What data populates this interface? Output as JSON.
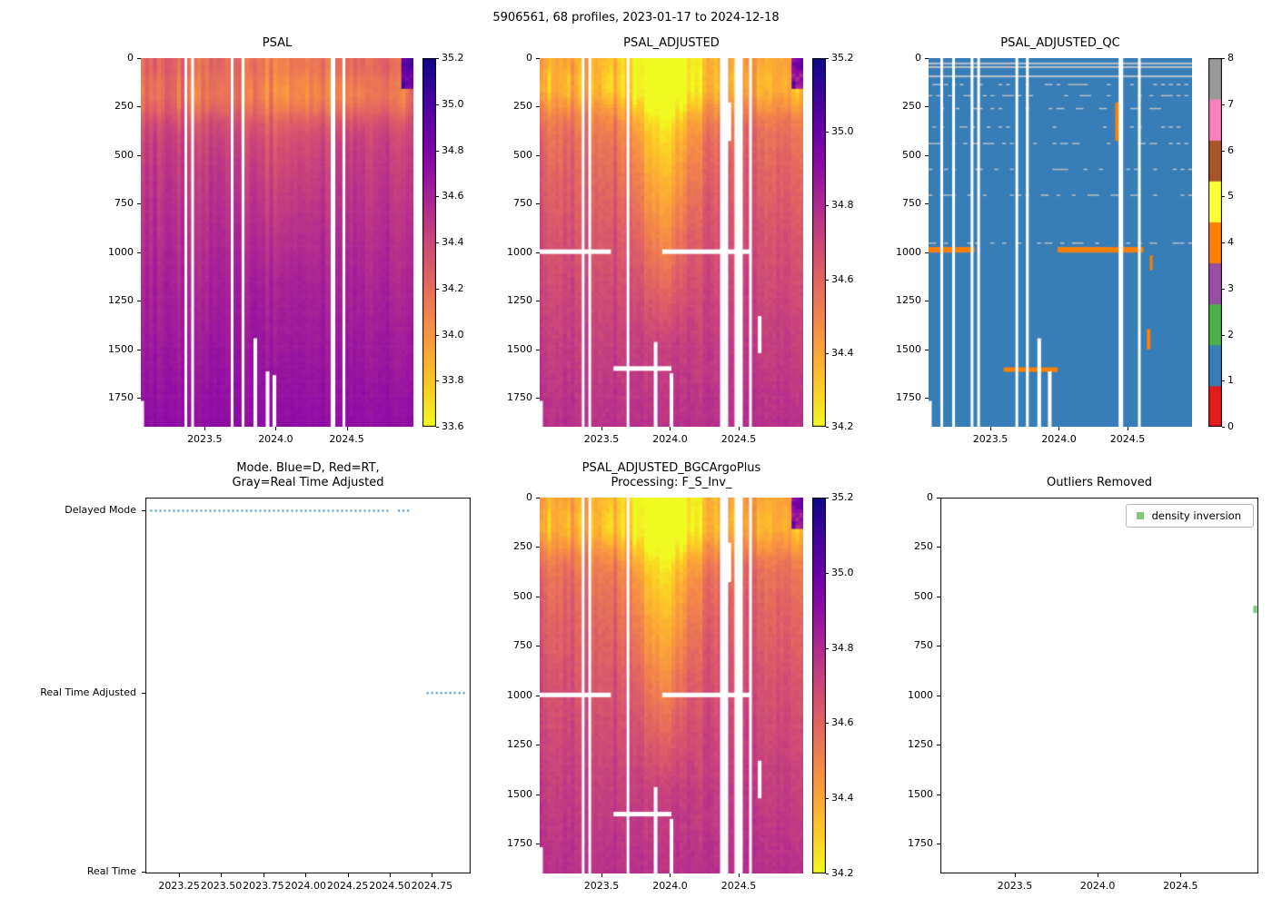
{
  "figure": {
    "suptitle": "5906561, 68 profiles, 2023-01-17 to 2024-12-18",
    "float_id": "5906561",
    "n_profiles": 68,
    "date_start": "2023-01-17",
    "date_end": "2024-12-18"
  },
  "chart_data": [
    {
      "id": "psal",
      "type": "heatmap",
      "title": "PSAL",
      "x_range": [
        2023.05,
        2024.97
      ],
      "y_range": [
        0,
        1900
      ],
      "x_tick_values": [
        2023.5,
        2024.0,
        2024.5
      ],
      "x_tick_labels": [
        "2023.5",
        "2024.0",
        "2024.5"
      ],
      "y_tick_values": [
        0,
        250,
        500,
        750,
        1000,
        1250,
        1500,
        1750
      ],
      "y_tick_labels": [
        "0",
        "250",
        "500",
        "750",
        "1000",
        "1250",
        "1500",
        "1750"
      ],
      "colorbar": {
        "type": "continuous",
        "colormap": "plasma_reversed",
        "vmin": 33.6,
        "vmax": 35.2,
        "tick_values": [
          33.6,
          33.8,
          34.0,
          34.2,
          34.4,
          34.6,
          34.8,
          35.0,
          35.2
        ],
        "tick_labels": [
          "33.6",
          "33.8",
          "34.0",
          "34.2",
          "34.4",
          "34.6",
          "34.8",
          "35.0",
          "35.2"
        ]
      },
      "field": {
        "surface": 34.25,
        "deep": 34.72,
        "curve": 0.6,
        "noise": 0.09,
        "band_strength": 0.28,
        "band_depth": 0.1,
        "plume": {
          "x": 0.5,
          "width": 0.22,
          "max_depth": 0.6,
          "strength": 0.13
        },
        "corner_blob": {
          "x_from": 0.955,
          "depth_to": 0.085,
          "value": 35.05
        },
        "seed": 1
      },
      "missing_columns": [
        {
          "x": 0.165,
          "w": 3
        },
        {
          "x": 0.19,
          "w": 3
        },
        {
          "x": 0.335,
          "w": 3
        },
        {
          "x": 0.375,
          "w": 3
        },
        {
          "x": 0.705,
          "w": 5
        },
        {
          "x": 0.745,
          "w": 3
        }
      ],
      "partial_columns": [
        {
          "x": 0.005,
          "from": 0.93
        },
        {
          "x": 0.42,
          "from": 0.76
        },
        {
          "x": 0.465,
          "from": 0.85
        },
        {
          "x": 0.49,
          "from": 0.86
        }
      ]
    },
    {
      "id": "psal_adjusted",
      "type": "heatmap",
      "title": "PSAL_ADJUSTED",
      "x_range": [
        2023.05,
        2024.97
      ],
      "y_range": [
        0,
        1900
      ],
      "x_tick_values": [
        2023.5,
        2024.0,
        2024.5
      ],
      "x_tick_labels": [
        "2023.5",
        "2024.0",
        "2024.5"
      ],
      "y_tick_values": [
        0,
        250,
        500,
        750,
        1000,
        1250,
        1500,
        1750
      ],
      "y_tick_labels": [
        "0",
        "250",
        "500",
        "750",
        "1000",
        "1250",
        "1500",
        "1750"
      ],
      "colorbar": {
        "type": "continuous",
        "colormap": "plasma_reversed",
        "vmin": 34.2,
        "vmax": 35.2,
        "tick_values": [
          34.2,
          34.4,
          34.6,
          34.8,
          35.0,
          35.2
        ],
        "tick_labels": [
          "34.2",
          "34.4",
          "34.6",
          "34.8",
          "35.0",
          "35.2"
        ]
      },
      "field": {
        "surface": 34.42,
        "deep": 34.78,
        "curve": 0.55,
        "noise": 0.07,
        "band_strength": 0.2,
        "band_depth": 0.08,
        "plume": {
          "x": 0.47,
          "width": 0.13,
          "max_depth": 0.78,
          "strength": 0.32
        },
        "corner_blob": {
          "x_from": 0.955,
          "depth_to": 0.085,
          "value": 35.05
        },
        "seed": 2
      },
      "missing_columns": [
        {
          "x": 0.165,
          "w": 3
        },
        {
          "x": 0.19,
          "w": 3
        },
        {
          "x": 0.335,
          "w": 3
        },
        {
          "x": 0.7,
          "w": 9
        },
        {
          "x": 0.755,
          "w": 9
        },
        {
          "x": 0.8,
          "w": 3
        }
      ],
      "white_rows": [
        {
          "y": 0.525,
          "x0": 0.0,
          "x1": 0.27,
          "h": 5
        },
        {
          "y": 0.525,
          "x0": 0.465,
          "x1": 0.8,
          "h": 5
        },
        {
          "y": 0.842,
          "x0": 0.28,
          "x1": 0.5,
          "h": 5
        }
      ],
      "partial_columns": [
        {
          "x": 0.44,
          "from": 0.77
        },
        {
          "x": 0.5,
          "from": 0.855
        },
        {
          "x": 0.72,
          "from": 0.12,
          "to": 0.225
        },
        {
          "x": 0.835,
          "from": 0.7,
          "to": 0.8
        },
        {
          "x": 0.005,
          "from": 0.93
        }
      ]
    },
    {
      "id": "psal_adjusted_qc",
      "type": "heatmap",
      "title": "PSAL_ADJUSTED_QC",
      "x_range": [
        2023.05,
        2024.97
      ],
      "y_range": [
        0,
        1900
      ],
      "x_tick_values": [
        2023.5,
        2024.0,
        2024.5
      ],
      "x_tick_labels": [
        "2023.5",
        "2024.0",
        "2024.5"
      ],
      "y_tick_values": [
        0,
        250,
        500,
        750,
        1000,
        1250,
        1500,
        1750
      ],
      "y_tick_labels": [
        "0",
        "250",
        "500",
        "750",
        "1000",
        "1250",
        "1500",
        "1750"
      ],
      "colorbar": {
        "type": "discrete",
        "tick_values": [
          0,
          1,
          2,
          3,
          4,
          5,
          6,
          7,
          8
        ],
        "tick_labels": [
          "0",
          "1",
          "2",
          "3",
          "4",
          "5",
          "6",
          "7",
          "8"
        ],
        "colors": [
          "#e41a1c",
          "#377eb8",
          "#4daf4a",
          "#984ea3",
          "#ff7f00",
          "#ffff33",
          "#a65628",
          "#f781bf",
          "#999999"
        ]
      },
      "background_flag": 1,
      "orange_marks": [
        {
          "kind": "row",
          "y": 0.52,
          "x0": 0.0,
          "x1": 0.175,
          "h": 6
        },
        {
          "kind": "row",
          "y": 0.52,
          "x0": 0.49,
          "x1": 0.815,
          "h": 6
        },
        {
          "kind": "row",
          "y": 0.845,
          "x0": 0.285,
          "x1": 0.49,
          "h": 5
        },
        {
          "kind": "col",
          "x": 0.715,
          "y0": 0.12,
          "y1": 0.225,
          "w": 4
        },
        {
          "kind": "col",
          "x": 0.835,
          "y0": 0.735,
          "y1": 0.79,
          "w": 4
        },
        {
          "kind": "col",
          "x": 0.845,
          "y0": 0.535,
          "y1": 0.575,
          "w": 3
        }
      ],
      "gray_rows": [
        {
          "y": 0.012,
          "x0": 0.0,
          "x1": 1.0
        },
        {
          "y": 0.022,
          "x0": 0.0,
          "x1": 1.0
        },
        {
          "y": 0.047,
          "x0": 0.0,
          "x1": 1.0
        }
      ],
      "gray_dash_rows": [
        0.07,
        0.1,
        0.135,
        0.185,
        0.23,
        0.3,
        0.37,
        0.5
      ],
      "missing_columns": [
        {
          "x": 0.05,
          "w": 3
        },
        {
          "x": 0.095,
          "w": 3
        },
        {
          "x": 0.165,
          "w": 3
        },
        {
          "x": 0.19,
          "w": 3
        },
        {
          "x": 0.335,
          "w": 3
        },
        {
          "x": 0.375,
          "w": 3
        },
        {
          "x": 0.73,
          "w": 5
        },
        {
          "x": 0.8,
          "w": 3
        }
      ],
      "partial_columns": [
        {
          "x": 0.005,
          "from": 0.93
        },
        {
          "x": 0.42,
          "from": 0.76
        },
        {
          "x": 0.46,
          "from": 0.85
        }
      ]
    },
    {
      "id": "mode",
      "type": "categorical_line",
      "title": "Mode. Blue=D, Red=RT,\nGray=Real Time Adjusted",
      "x_range": [
        2023.05,
        2024.98
      ],
      "x_tick_values": [
        2023.25,
        2023.5,
        2023.75,
        2024.0,
        2024.25,
        2024.5,
        2024.75
      ],
      "x_tick_labels": [
        "2023.25",
        "2023.50",
        "2023.75",
        "2024.00",
        "2024.25",
        "2024.50",
        "2024.75"
      ],
      "y_categories": [
        "Delayed Mode",
        "Real Time Adjusted",
        "Real Time"
      ],
      "line_color": "#1f77b4",
      "line_style": "dotted",
      "series": [
        {
          "name": "Delayed Mode",
          "category": "Delayed Mode",
          "segments": [
            [
              2023.08,
              2024.5
            ],
            [
              2024.55,
              2024.63
            ]
          ]
        },
        {
          "name": "Real Time Adjusted",
          "category": "Real Time Adjusted",
          "segments": [
            [
              2024.72,
              2024.96
            ]
          ]
        }
      ]
    },
    {
      "id": "psal_adjusted_bgcargoplus",
      "type": "heatmap",
      "title": "PSAL_ADJUSTED_BGCArgoPlus\nProcessing: F_S_Inv_",
      "x_range": [
        2023.05,
        2024.97
      ],
      "y_range": [
        0,
        1900
      ],
      "x_tick_values": [
        2023.5,
        2024.0,
        2024.5
      ],
      "x_tick_labels": [
        "2023.5",
        "2024.0",
        "2024.5"
      ],
      "y_tick_values": [
        0,
        250,
        500,
        750,
        1000,
        1250,
        1500,
        1750
      ],
      "y_tick_labels": [
        "0",
        "250",
        "500",
        "750",
        "1000",
        "1250",
        "1500",
        "1750"
      ],
      "colorbar": {
        "type": "continuous",
        "colormap": "plasma_reversed",
        "vmin": 34.2,
        "vmax": 35.2,
        "tick_values": [
          34.2,
          34.4,
          34.6,
          34.8,
          35.0,
          35.2
        ],
        "tick_labels": [
          "34.2",
          "34.4",
          "34.6",
          "34.8",
          "35.0",
          "35.2"
        ]
      },
      "field": {
        "surface": 34.42,
        "deep": 34.78,
        "curve": 0.55,
        "noise": 0.07,
        "band_strength": 0.2,
        "band_depth": 0.08,
        "plume": {
          "x": 0.47,
          "width": 0.13,
          "max_depth": 0.78,
          "strength": 0.32
        },
        "corner_blob": {
          "x_from": 0.955,
          "depth_to": 0.085,
          "value": 35.05
        },
        "seed": 2
      },
      "missing_columns": [
        {
          "x": 0.165,
          "w": 3
        },
        {
          "x": 0.19,
          "w": 3
        },
        {
          "x": 0.335,
          "w": 3
        },
        {
          "x": 0.7,
          "w": 9
        },
        {
          "x": 0.755,
          "w": 9
        },
        {
          "x": 0.8,
          "w": 3
        }
      ],
      "white_rows": [
        {
          "y": 0.525,
          "x0": 0.0,
          "x1": 0.27,
          "h": 5
        },
        {
          "y": 0.525,
          "x0": 0.465,
          "x1": 0.8,
          "h": 5
        },
        {
          "y": 0.842,
          "x0": 0.28,
          "x1": 0.5,
          "h": 5
        }
      ],
      "partial_columns": [
        {
          "x": 0.44,
          "from": 0.77
        },
        {
          "x": 0.5,
          "from": 0.855
        },
        {
          "x": 0.72,
          "from": 0.12,
          "to": 0.225
        },
        {
          "x": 0.835,
          "from": 0.7,
          "to": 0.8
        },
        {
          "x": 0.005,
          "from": 0.93
        }
      ]
    },
    {
      "id": "outliers_removed",
      "type": "scatter",
      "title": "Outliers Removed",
      "x_range": [
        2023.05,
        2024.97
      ],
      "y_range": [
        0,
        1900
      ],
      "x_tick_values": [
        2023.5,
        2024.0,
        2024.5
      ],
      "x_tick_labels": [
        "2023.5",
        "2024.0",
        "2024.5"
      ],
      "y_tick_values": [
        0,
        250,
        500,
        750,
        1000,
        1250,
        1500,
        1750
      ],
      "y_tick_labels": [
        "0",
        "250",
        "500",
        "750",
        "1000",
        "1250",
        "1500",
        "1750"
      ],
      "legend": {
        "items": [
          {
            "label": "density inversion",
            "color": "#7fc97f"
          }
        ]
      },
      "points": [
        {
          "x": 2024.95,
          "y": 565,
          "series": "density inversion",
          "color": "#7fc97f"
        }
      ]
    }
  ]
}
